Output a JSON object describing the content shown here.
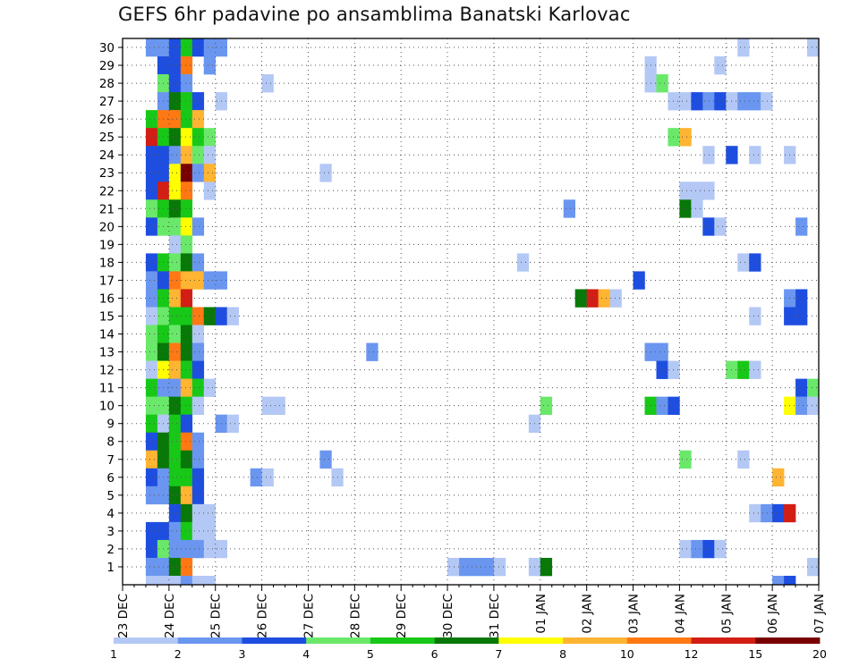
{
  "chart_data": {
    "type": "heatmap",
    "title": "GEFS 6hr padavine po ansamblima Banatski Karlovac",
    "xlabel": "",
    "ylabel": "",
    "y_tick_labels": [
      "1",
      "2",
      "3",
      "4",
      "5",
      "6",
      "7",
      "8",
      "9",
      "10",
      "11",
      "12",
      "13",
      "14",
      "15",
      "16",
      "17",
      "18",
      "19",
      "20",
      "21",
      "22",
      "23",
      "24",
      "25",
      "26",
      "27",
      "28",
      "29",
      "30"
    ],
    "x_tick_labels": [
      "23 DEC",
      "24 DEC",
      "25 DEC",
      "26 DEC",
      "27 DEC",
      "28 DEC",
      "29 DEC",
      "30 DEC",
      "31 DEC",
      "01 JAN",
      "02 JAN",
      "03 JAN",
      "04 JAN",
      "05 JAN",
      "06 JAN",
      "07 JAN"
    ],
    "x_steps_per_day": 4,
    "x_range_steps": [
      0,
      60
    ],
    "y_range_members": [
      0,
      30
    ],
    "grid": true,
    "legend": {
      "placement": "bottom",
      "labels": [
        "1",
        "2",
        "3",
        "4",
        "5",
        "6",
        "7",
        "8",
        "10",
        "12",
        "15",
        "20"
      ],
      "colors": [
        "#b4c8f5",
        "#6a96f0",
        "#1e4ee0",
        "#6ae86a",
        "#18c818",
        "#087808",
        "#ffff00",
        "#ffb432",
        "#ff7814",
        "#d21e14",
        "#780000"
      ]
    },
    "value_bins": [
      {
        "lo": 1,
        "hi": 2,
        "color": "#b4c8f5"
      },
      {
        "lo": 2,
        "hi": 3,
        "color": "#6a96f0"
      },
      {
        "lo": 3,
        "hi": 4,
        "color": "#1e4ee0"
      },
      {
        "lo": 4,
        "hi": 5,
        "color": "#6ae86a"
      },
      {
        "lo": 5,
        "hi": 6,
        "color": "#18c818"
      },
      {
        "lo": 6,
        "hi": 7,
        "color": "#087808"
      },
      {
        "lo": 7,
        "hi": 8,
        "color": "#ffff00"
      },
      {
        "lo": 8,
        "hi": 10,
        "color": "#ffb432"
      },
      {
        "lo": 10,
        "hi": 12,
        "color": "#ff7814"
      },
      {
        "lo": 12,
        "hi": 15,
        "color": "#d21e14"
      },
      {
        "lo": 15,
        "hi": 20,
        "color": "#780000"
      }
    ],
    "cells": [
      [
        30,
        2,
        2.5
      ],
      [
        30,
        3,
        2.5
      ],
      [
        30,
        4,
        3.5
      ],
      [
        30,
        5,
        5.5
      ],
      [
        30,
        6,
        3.5
      ],
      [
        30,
        7,
        2.5
      ],
      [
        30,
        8,
        2.5
      ],
      [
        30,
        53,
        1.5
      ],
      [
        30,
        59,
        1.5
      ],
      [
        29,
        3,
        3.5
      ],
      [
        29,
        4,
        3.5
      ],
      [
        29,
        5,
        11
      ],
      [
        29,
        7,
        2.5
      ],
      [
        29,
        45,
        1.5
      ],
      [
        29,
        51,
        1.5
      ],
      [
        28,
        3,
        4.5
      ],
      [
        28,
        4,
        3.5
      ],
      [
        28,
        5,
        2.5
      ],
      [
        28,
        12,
        1.5
      ],
      [
        28,
        45,
        1.5
      ],
      [
        28,
        46,
        4.5
      ],
      [
        27,
        3,
        2.5
      ],
      [
        27,
        4,
        6.5
      ],
      [
        27,
        5,
        5.5
      ],
      [
        27,
        6,
        3.5
      ],
      [
        27,
        8,
        1.5
      ],
      [
        27,
        47,
        1.5
      ],
      [
        27,
        48,
        1.5
      ],
      [
        27,
        49,
        3.5
      ],
      [
        27,
        50,
        2.5
      ],
      [
        27,
        51,
        3.5
      ],
      [
        27,
        52,
        1.5
      ],
      [
        27,
        53,
        2.5
      ],
      [
        27,
        54,
        2.5
      ],
      [
        27,
        55,
        1.5
      ],
      [
        26,
        2,
        5.5
      ],
      [
        26,
        3,
        11
      ],
      [
        26,
        4,
        11
      ],
      [
        26,
        5,
        5.5
      ],
      [
        26,
        6,
        9
      ],
      [
        25,
        2,
        13
      ],
      [
        25,
        3,
        5.5
      ],
      [
        25,
        4,
        6.5
      ],
      [
        25,
        5,
        7.5
      ],
      [
        25,
        6,
        5.5
      ],
      [
        25,
        7,
        4.5
      ],
      [
        25,
        47,
        4.5
      ],
      [
        25,
        48,
        9
      ],
      [
        24,
        2,
        3.5
      ],
      [
        24,
        3,
        3.5
      ],
      [
        24,
        4,
        2.5
      ],
      [
        24,
        5,
        9
      ],
      [
        24,
        6,
        4.5
      ],
      [
        24,
        7,
        1.5
      ],
      [
        24,
        50,
        1.5
      ],
      [
        24,
        52,
        3.5
      ],
      [
        24,
        54,
        1.5
      ],
      [
        24,
        57,
        1.5
      ],
      [
        23,
        2,
        3.5
      ],
      [
        23,
        3,
        3.5
      ],
      [
        23,
        4,
        7.5
      ],
      [
        23,
        5,
        17
      ],
      [
        23,
        6,
        2.5
      ],
      [
        23,
        7,
        9
      ],
      [
        23,
        17,
        1.5
      ],
      [
        22,
        2,
        3.5
      ],
      [
        22,
        3,
        13
      ],
      [
        22,
        4,
        7.5
      ],
      [
        22,
        5,
        11
      ],
      [
        22,
        7,
        1.5
      ],
      [
        22,
        48,
        1.5
      ],
      [
        22,
        49,
        1.5
      ],
      [
        22,
        50,
        1.5
      ],
      [
        21,
        2,
        4.5
      ],
      [
        21,
        3,
        5.5
      ],
      [
        21,
        4,
        6.5
      ],
      [
        21,
        5,
        5.5
      ],
      [
        21,
        38,
        2.5
      ],
      [
        21,
        48,
        6.5
      ],
      [
        21,
        49,
        1.5
      ],
      [
        20,
        2,
        3.5
      ],
      [
        20,
        3,
        4.5
      ],
      [
        20,
        4,
        4.5
      ],
      [
        20,
        5,
        7.5
      ],
      [
        20,
        6,
        2.5
      ],
      [
        20,
        50,
        3.5
      ],
      [
        20,
        51,
        1.5
      ],
      [
        20,
        58,
        2.5
      ],
      [
        19,
        4,
        1.5
      ],
      [
        19,
        5,
        4.5
      ],
      [
        18,
        2,
        3.5
      ],
      [
        18,
        3,
        5.5
      ],
      [
        18,
        4,
        4.5
      ],
      [
        18,
        5,
        6.5
      ],
      [
        18,
        6,
        2.5
      ],
      [
        18,
        34,
        1.5
      ],
      [
        18,
        53,
        1.5
      ],
      [
        18,
        54,
        3.5
      ],
      [
        17,
        2,
        2.5
      ],
      [
        17,
        3,
        3.5
      ],
      [
        17,
        4,
        11
      ],
      [
        17,
        5,
        9
      ],
      [
        17,
        6,
        9
      ],
      [
        17,
        7,
        2.5
      ],
      [
        17,
        8,
        2.5
      ],
      [
        17,
        44,
        3.5
      ],
      [
        16,
        2,
        2.5
      ],
      [
        16,
        3,
        5.5
      ],
      [
        16,
        4,
        9
      ],
      [
        16,
        5,
        13
      ],
      [
        16,
        39,
        6.5
      ],
      [
        16,
        40,
        13
      ],
      [
        16,
        41,
        9
      ],
      [
        16,
        42,
        1.5
      ],
      [
        16,
        57,
        2.5
      ],
      [
        16,
        58,
        3.5
      ],
      [
        15,
        2,
        1.5
      ],
      [
        15,
        3,
        4.5
      ],
      [
        15,
        4,
        5.5
      ],
      [
        15,
        5,
        5.5
      ],
      [
        15,
        6,
        11
      ],
      [
        15,
        7,
        6.5
      ],
      [
        15,
        8,
        3.5
      ],
      [
        15,
        9,
        1.5
      ],
      [
        15,
        54,
        1.5
      ],
      [
        15,
        57,
        3.5
      ],
      [
        15,
        58,
        3.5
      ],
      [
        14,
        2,
        4.5
      ],
      [
        14,
        3,
        5.5
      ],
      [
        14,
        4,
        4.5
      ],
      [
        14,
        5,
        6.5
      ],
      [
        14,
        6,
        1.5
      ],
      [
        13,
        2,
        4.5
      ],
      [
        13,
        3,
        6.5
      ],
      [
        13,
        4,
        11
      ],
      [
        13,
        5,
        6.5
      ],
      [
        13,
        6,
        2.5
      ],
      [
        13,
        21,
        2.5
      ],
      [
        13,
        45,
        2.5
      ],
      [
        13,
        46,
        2.5
      ],
      [
        12,
        2,
        1.5
      ],
      [
        12,
        3,
        7.5
      ],
      [
        12,
        4,
        9
      ],
      [
        12,
        5,
        5.5
      ],
      [
        12,
        6,
        3.5
      ],
      [
        12,
        46,
        3.5
      ],
      [
        12,
        47,
        1.5
      ],
      [
        12,
        52,
        4.5
      ],
      [
        12,
        53,
        5.5
      ],
      [
        12,
        54,
        1.5
      ],
      [
        11,
        2,
        5.5
      ],
      [
        11,
        3,
        2.5
      ],
      [
        11,
        4,
        2.5
      ],
      [
        11,
        5,
        9
      ],
      [
        11,
        6,
        5.5
      ],
      [
        11,
        7,
        1.5
      ],
      [
        11,
        58,
        3.5
      ],
      [
        11,
        59,
        4.5
      ],
      [
        11,
        60,
        2.5
      ],
      [
        10,
        2,
        4.5
      ],
      [
        10,
        3,
        4.5
      ],
      [
        10,
        4,
        6.5
      ],
      [
        10,
        5,
        5.5
      ],
      [
        10,
        6,
        1.5
      ],
      [
        10,
        12,
        1.5
      ],
      [
        10,
        13,
        1.5
      ],
      [
        10,
        36,
        4.5
      ],
      [
        10,
        45,
        5.5
      ],
      [
        10,
        46,
        2.5
      ],
      [
        10,
        47,
        3.5
      ],
      [
        10,
        57,
        7.5
      ],
      [
        10,
        58,
        2.5
      ],
      [
        10,
        59,
        1.5
      ],
      [
        9,
        2,
        5.5
      ],
      [
        9,
        3,
        1.5
      ],
      [
        9,
        4,
        5.5
      ],
      [
        9,
        5,
        3.5
      ],
      [
        9,
        8,
        2.5
      ],
      [
        9,
        9,
        1.5
      ],
      [
        9,
        35,
        1.5
      ],
      [
        8,
        2,
        3.5
      ],
      [
        8,
        3,
        6.5
      ],
      [
        8,
        4,
        5.5
      ],
      [
        8,
        5,
        11
      ],
      [
        8,
        6,
        2.5
      ],
      [
        7,
        2,
        9
      ],
      [
        7,
        3,
        6.5
      ],
      [
        7,
        4,
        5.5
      ],
      [
        7,
        5,
        6.5
      ],
      [
        7,
        6,
        2.5
      ],
      [
        7,
        17,
        2.5
      ],
      [
        7,
        48,
        4.5
      ],
      [
        7,
        53,
        1.5
      ],
      [
        6,
        2,
        3.5
      ],
      [
        6,
        3,
        2.5
      ],
      [
        6,
        4,
        5.5
      ],
      [
        6,
        5,
        5.5
      ],
      [
        6,
        6,
        3.5
      ],
      [
        6,
        11,
        2.5
      ],
      [
        6,
        12,
        1.5
      ],
      [
        6,
        18,
        1.5
      ],
      [
        6,
        56,
        9
      ],
      [
        6,
        60,
        1.5
      ],
      [
        5,
        2,
        2.5
      ],
      [
        5,
        3,
        2.5
      ],
      [
        5,
        4,
        6.5
      ],
      [
        5,
        5,
        9
      ],
      [
        5,
        6,
        3.5
      ],
      [
        4,
        4,
        3.5
      ],
      [
        4,
        5,
        6.5
      ],
      [
        4,
        6,
        1.5
      ],
      [
        4,
        7,
        1.5
      ],
      [
        4,
        54,
        1.5
      ],
      [
        4,
        55,
        2.5
      ],
      [
        4,
        56,
        3.5
      ],
      [
        4,
        57,
        13
      ],
      [
        3,
        2,
        3.5
      ],
      [
        3,
        3,
        3.5
      ],
      [
        3,
        4,
        2.5
      ],
      [
        3,
        5,
        5.5
      ],
      [
        3,
        6,
        1.5
      ],
      [
        3,
        7,
        1.5
      ],
      [
        2,
        2,
        3.5
      ],
      [
        2,
        3,
        4.5
      ],
      [
        2,
        4,
        2.5
      ],
      [
        2,
        5,
        2.5
      ],
      [
        2,
        6,
        2.5
      ],
      [
        2,
        7,
        1.5
      ],
      [
        2,
        8,
        1.5
      ],
      [
        2,
        48,
        1.5
      ],
      [
        2,
        49,
        2.5
      ],
      [
        2,
        50,
        3.5
      ],
      [
        2,
        51,
        1.5
      ],
      [
        1,
        2,
        2.5
      ],
      [
        1,
        3,
        2.5
      ],
      [
        1,
        4,
        6.5
      ],
      [
        1,
        5,
        11
      ],
      [
        1,
        28,
        1.5
      ],
      [
        1,
        29,
        2.5
      ],
      [
        1,
        30,
        2.5
      ],
      [
        1,
        31,
        2.5
      ],
      [
        1,
        32,
        1.5
      ],
      [
        1,
        35,
        1.5
      ],
      [
        1,
        36,
        6.5
      ],
      [
        1,
        59,
        1.5
      ],
      [
        0,
        2,
        1.5
      ],
      [
        0,
        3,
        1.5
      ],
      [
        0,
        4,
        1.5
      ],
      [
        0,
        5,
        2.5
      ],
      [
        0,
        6,
        1.5
      ],
      [
        0,
        7,
        1.5
      ],
      [
        0,
        56,
        2.5
      ],
      [
        0,
        57,
        3.5
      ]
    ]
  }
}
